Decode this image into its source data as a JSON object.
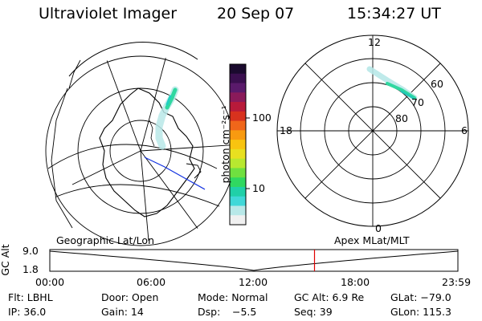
{
  "header": {
    "instrument": "Ultraviolet Imager",
    "date": "20 Sep 07",
    "time": "15:34:27 UT"
  },
  "colorbar": {
    "unit_label": "photon cm⁻²s⁻¹",
    "tick_labels": [
      "100",
      "10"
    ],
    "colors": [
      "#1a0a2e",
      "#3a0f4f",
      "#5a1a6b",
      "#8a1a5a",
      "#b81a3a",
      "#d8321e",
      "#f0661a",
      "#f89a10",
      "#f8c410",
      "#e8e020",
      "#b8e830",
      "#70e040",
      "#30d860",
      "#20d0a8",
      "#40d8d8",
      "#b8e8e8",
      "#f0f0f0"
    ]
  },
  "left_map": {
    "projection_label": "Geographic Lat/Lon"
  },
  "right_map": {
    "projection_label": "Apex MLat/MLT",
    "mlt_labels": {
      "top": "12",
      "left": "18",
      "right": "6",
      "bottom": "0"
    },
    "lat_labels": [
      "60",
      "70",
      "80"
    ]
  },
  "altitude_plot": {
    "ylabel": "GC Alt",
    "ytick_labels": [
      "9.0",
      "1.8"
    ],
    "xtick_labels": [
      "00:00",
      "06:00",
      "12:00",
      "18:00",
      "23:59"
    ],
    "series_color": "#000000",
    "marker_color": "#e00000"
  },
  "info": {
    "filter": "Flt: LBHL",
    "door": "Door: Open",
    "mode": "Mode: Normal",
    "gc_alt": "GC Alt: 6.9 Re",
    "glat": "GLat: −79.0",
    "ip": "IP: 36.0",
    "gain": "Gain: 14",
    "dsp_label": "Dsp:",
    "dsp_value": "−5.5",
    "seq": "Seq: 39",
    "glon": "GLon: 115.3"
  }
}
